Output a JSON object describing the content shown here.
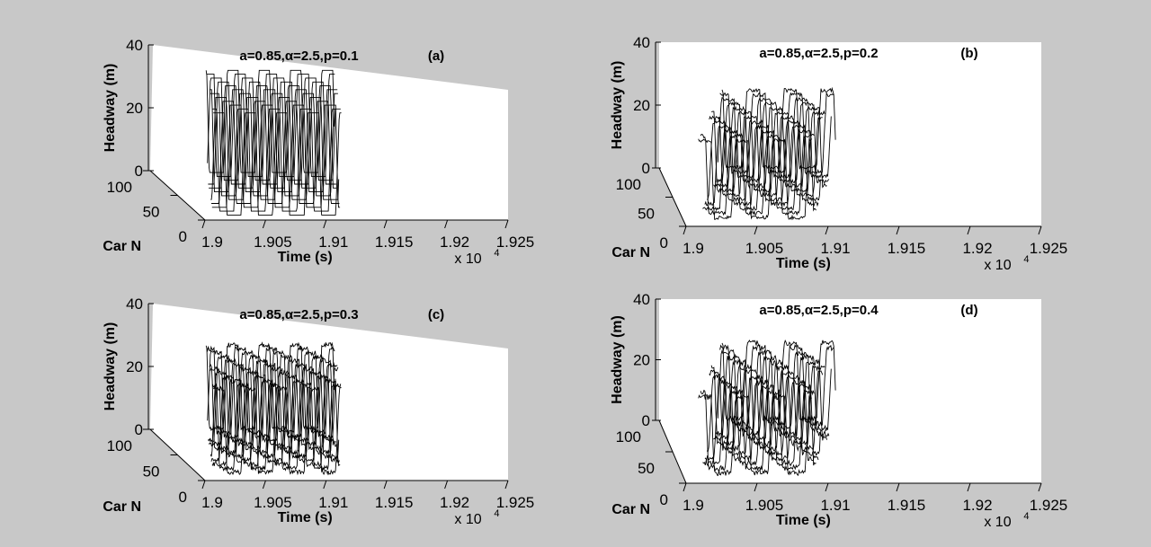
{
  "chart_data": [
    {
      "type": "line",
      "subtype": "3d-waterfall",
      "panel_label": "(a)",
      "title": "a=0.85,α=2.5,p=0.1",
      "xlabel": "Time (s)",
      "ylabel": "Car N",
      "zlabel": "Headway (m)",
      "x_ticks": [
        "1.9",
        "1.905",
        "1.91",
        "1.915",
        "1.92",
        "1.925"
      ],
      "x_multiplier": "x 10",
      "x_multiplier_exp": "4",
      "xlim": [
        19000,
        19250
      ],
      "y_ticks": [
        "0",
        "50",
        "100"
      ],
      "ylim": [
        0,
        100
      ],
      "z_ticks": [
        "0",
        "20",
        "40"
      ],
      "zlim": [
        0,
        40
      ],
      "headway_low": 0.5,
      "headway_high": 33,
      "noise": 0,
      "series_count": 12,
      "oscillations_per_series": 4
    },
    {
      "type": "line",
      "subtype": "3d-waterfall",
      "panel_label": "(b)",
      "title": "a=0.85,α=2.5,p=0.2",
      "xlabel": "Time (s)",
      "ylabel": "Car N",
      "zlabel": "Headway (m)",
      "x_ticks": [
        "1.9",
        "1.905",
        "1.91",
        "1.915",
        "1.92",
        "1.925"
      ],
      "x_multiplier": "x 10",
      "x_multiplier_exp": "4",
      "xlim": [
        19000,
        19250
      ],
      "y_ticks": [
        "0",
        "50",
        "100"
      ],
      "ylim": [
        0,
        100
      ],
      "z_ticks": [
        "0",
        "20",
        "40"
      ],
      "zlim": [
        0,
        40
      ],
      "headway_low": 1.5,
      "headway_high": 26,
      "noise": 0.6,
      "series_count": 12,
      "oscillations_per_series": 3
    },
    {
      "type": "line",
      "subtype": "3d-waterfall",
      "panel_label": "(c)",
      "title": "a=0.85,α=2.5,p=0.3",
      "xlabel": "Time (s)",
      "ylabel": "Car N",
      "zlabel": "Headway (m)",
      "x_ticks": [
        "1.9",
        "1.905",
        "1.91",
        "1.915",
        "1.92",
        "1.925"
      ],
      "x_multiplier": "x 10",
      "x_multiplier_exp": "4",
      "xlim": [
        19000,
        19250
      ],
      "y_ticks": [
        "0",
        "50",
        "100"
      ],
      "ylim": [
        0,
        100
      ],
      "z_ticks": [
        "0",
        "20",
        "40"
      ],
      "zlim": [
        0,
        40
      ],
      "headway_low": 1.5,
      "headway_high": 28,
      "noise": 0.7,
      "series_count": 12,
      "oscillations_per_series": 4
    },
    {
      "type": "line",
      "subtype": "3d-waterfall",
      "panel_label": "(d)",
      "title": "a=0.85,α=2.5,p=0.4",
      "xlabel": "Time (s)",
      "ylabel": "Car N",
      "zlabel": "Headway (m)",
      "x_ticks": [
        "1.9",
        "1.905",
        "1.91",
        "1.915",
        "1.92",
        "1.925"
      ],
      "x_multiplier": "x 10",
      "x_multiplier_exp": "4",
      "xlim": [
        19000,
        19250
      ],
      "y_ticks": [
        "0",
        "50",
        "100"
      ],
      "ylim": [
        0,
        100
      ],
      "z_ticks": [
        "0",
        "20",
        "40"
      ],
      "zlim": [
        0,
        40
      ],
      "headway_low": 2,
      "headway_high": 27,
      "noise": 0.9,
      "series_count": 12,
      "oscillations_per_series": 3
    }
  ],
  "colors": {
    "background": "#c8c8c8",
    "plot_face": "#ffffff",
    "ink": "#000000"
  }
}
